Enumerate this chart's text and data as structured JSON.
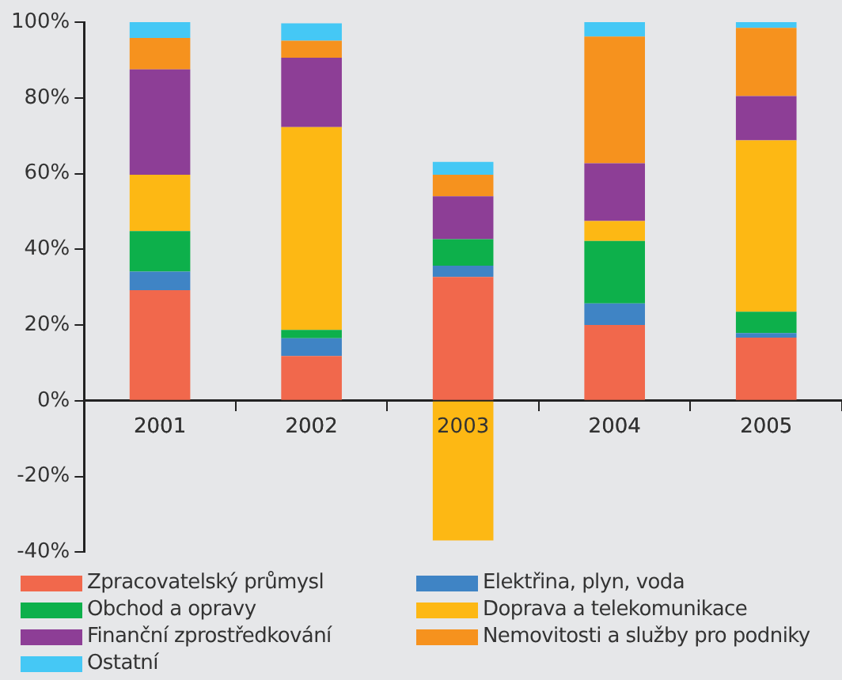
{
  "chart_data": {
    "type": "bar",
    "stacked": true,
    "categories": [
      "2001",
      "2002",
      "2003",
      "2004",
      "2005"
    ],
    "series": [
      {
        "name": "Zpracovatelský průmysl",
        "color": "#f1684c",
        "values": [
          29.2,
          11.8,
          32.7,
          20.0,
          16.7
        ]
      },
      {
        "name": "Elektřina, plyn, voda",
        "color": "#3f84c5",
        "values": [
          4.9,
          4.7,
          3.0,
          5.7,
          1.2
        ]
      },
      {
        "name": "Obchod a opravy",
        "color": "#0db04b",
        "values": [
          10.7,
          2.2,
          7.0,
          16.5,
          5.6
        ]
      },
      {
        "name": "Doprava a telekomunikace",
        "color": "#fdb814",
        "values": [
          14.9,
          53.6,
          -36.9,
          5.3,
          45.3
        ]
      },
      {
        "name": "Finanční zprostředkování",
        "color": "#8d3e96",
        "values": [
          27.8,
          18.3,
          11.3,
          15.2,
          11.7
        ]
      },
      {
        "name": "Nemovitosti a služby pro podniky",
        "color": "#f6921e",
        "values": [
          8.3,
          4.5,
          5.7,
          33.5,
          18.0
        ]
      },
      {
        "name": "Ostatní",
        "color": "#45c8f5",
        "values": [
          4.3,
          4.6,
          3.4,
          3.9,
          1.6
        ]
      }
    ],
    "ylim": [
      -40,
      100
    ],
    "yticks": [
      {
        "value": -40,
        "label": "-40%"
      },
      {
        "value": -20,
        "label": "-20%"
      },
      {
        "value": 0,
        "label": "0%"
      },
      {
        "value": 20,
        "label": "20%"
      },
      {
        "value": 40,
        "label": "40%"
      },
      {
        "value": 60,
        "label": "60%"
      },
      {
        "value": 80,
        "label": "80%"
      },
      {
        "value": 100,
        "label": "100%"
      }
    ],
    "grid": false,
    "legend": "bottom"
  }
}
